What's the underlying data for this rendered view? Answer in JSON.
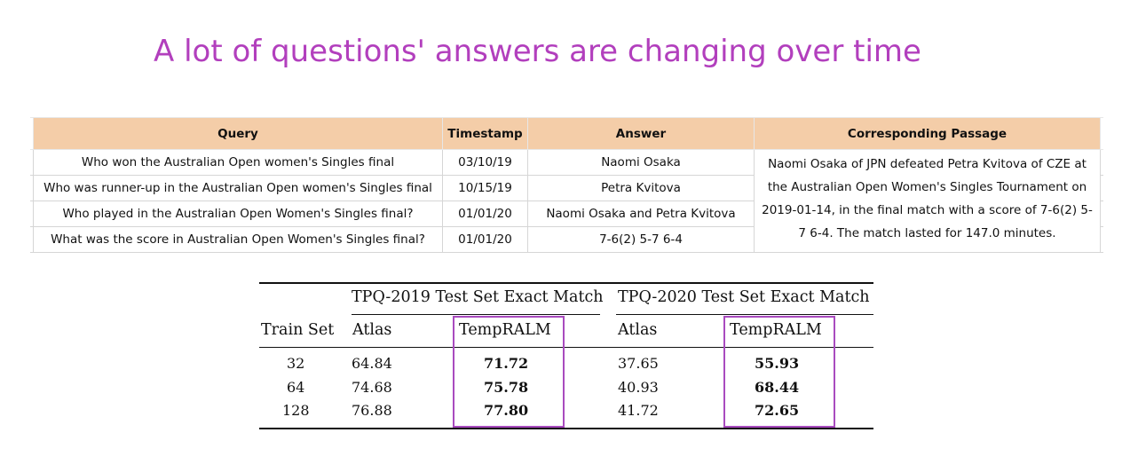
{
  "slide": {
    "title": "A lot of questions' answers are changing over time"
  },
  "qa_table": {
    "headers": [
      "Query",
      "Timestamp",
      "Answer",
      "Corresponding Passage"
    ],
    "rows": [
      {
        "query": "Who won the Australian Open women's Singles final",
        "timestamp": "03/10/19",
        "answer": "Naomi Osaka"
      },
      {
        "query": "Who was runner-up in the Australian Open women's Singles final",
        "timestamp": "10/15/19",
        "answer": "Petra Kvitova"
      },
      {
        "query": "Who played in the Australian Open Women's Singles final?",
        "timestamp": "01/01/20",
        "answer": "Naomi Osaka and Petra Kvitova"
      },
      {
        "query": "What was the score in Australian Open Women's Singles final?",
        "timestamp": "01/01/20",
        "answer": "7-6(2) 5-7 6-4"
      }
    ],
    "passage": "Naomi Osaka of JPN defeated Petra Kvitova of CZE at the Australian Open Women's Singles Tournament on 2019-01-14, in the final match with a score of 7-6(2) 5-7 6-4. The match lasted for 147.0 minutes."
  },
  "results_table": {
    "group_headers": [
      "TPQ-2019 Test Set Exact Match",
      "TPQ-2020 Test Set Exact Match"
    ],
    "columns": [
      "Train Set",
      "Atlas",
      "TempRALM",
      "Atlas",
      "TempRALM"
    ],
    "rows": [
      {
        "train_set": "32",
        "atlas_2019": "64.84",
        "tempralm_2019": "71.72",
        "atlas_2020": "37.65",
        "tempralm_2020": "55.93"
      },
      {
        "train_set": "64",
        "atlas_2019": "74.68",
        "tempralm_2019": "75.78",
        "atlas_2020": "40.93",
        "tempralm_2020": "68.44"
      },
      {
        "train_set": "128",
        "atlas_2019": "76.88",
        "tempralm_2019": "77.80",
        "atlas_2020": "41.72",
        "tempralm_2020": "72.65"
      }
    ],
    "highlight_color": "#a94bbf"
  },
  "colors": {
    "title": "#b23fbd",
    "header_fill": "#f4cda8"
  }
}
